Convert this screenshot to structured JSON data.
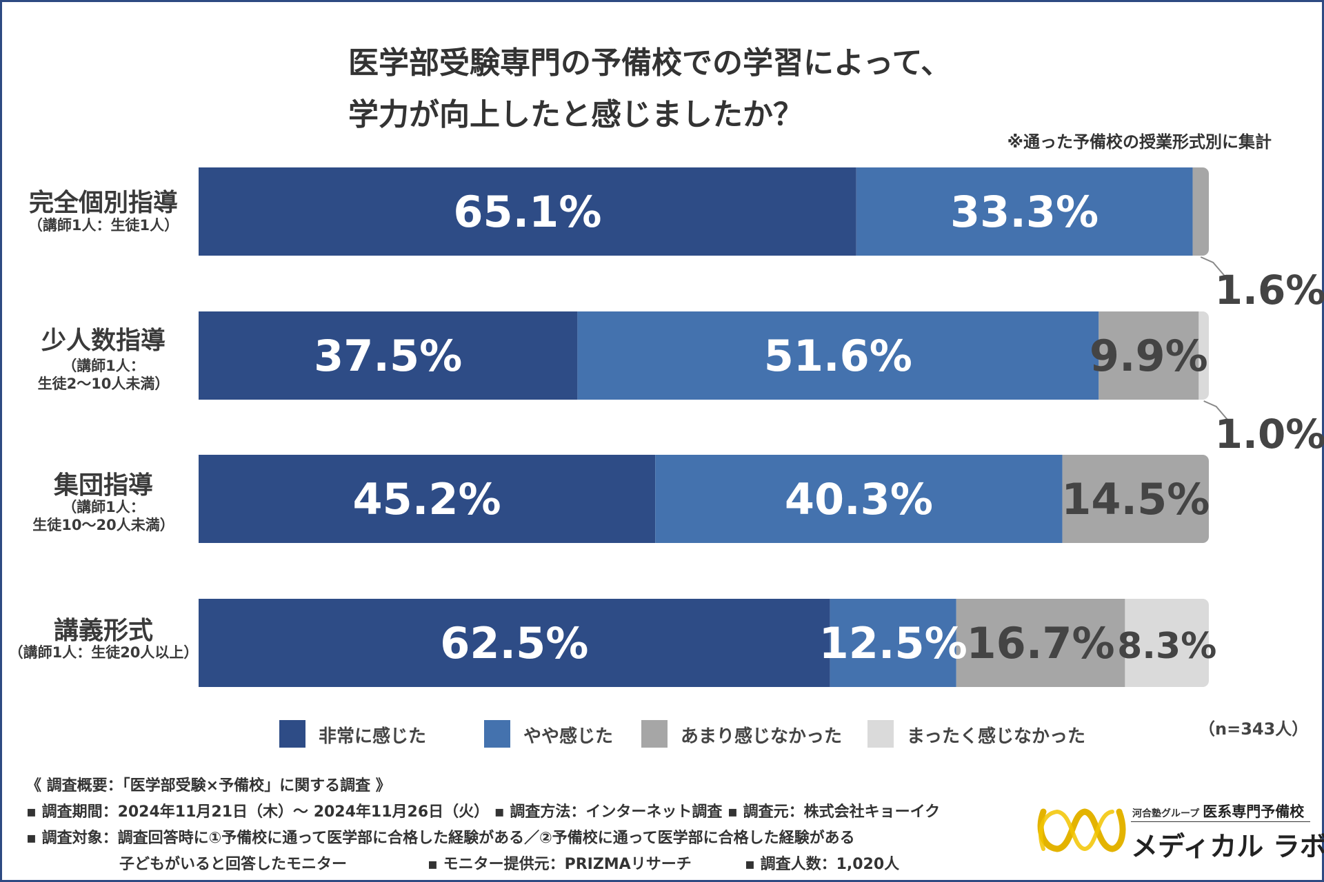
{
  "title_lines": [
    "医学部受験専門の予備校での学習によって、",
    "学力が向上したと感じましたか？"
  ],
  "note": "※通った予備校の授業形式別に集計",
  "n_label": "（n=343人）",
  "colors": {
    "series": [
      "#2e4c86",
      "#4472ae",
      "#a6a6a6",
      "#dadada"
    ],
    "value_text": [
      "#ffffff",
      "#ffffff",
      "#444444",
      "#444444"
    ],
    "frame": "#2e4a82"
  },
  "chart_data": {
    "type": "bar",
    "orientation": "horizontal",
    "stacked": true,
    "title": "医学部受験専門の予備校での学習によって、学力が向上したと感じましたか？",
    "categories": [
      {
        "name": "完全個別指導",
        "sub": [
          "（講師1人：生徒1人）"
        ]
      },
      {
        "name": "少人数指導",
        "sub": [
          "（講師1人：",
          "生徒2〜10人未満）"
        ]
      },
      {
        "name": "集団指導",
        "sub": [
          "（講師1人：",
          "生徒10〜20人未満）"
        ]
      },
      {
        "name": "講義形式",
        "sub": [
          "（講師1人：生徒20人以上）"
        ]
      }
    ],
    "series": [
      {
        "name": "非常に感じた",
        "values": [
          65.1,
          37.5,
          45.2,
          62.5
        ],
        "labels": [
          "65.1%",
          "37.5%",
          "45.2%",
          "62.5%"
        ]
      },
      {
        "name": "やや感じた",
        "values": [
          33.3,
          51.6,
          40.3,
          12.5
        ],
        "labels": [
          "33.3%",
          "51.6%",
          "40.3%",
          "12.5%"
        ]
      },
      {
        "name": "あまり感じなかった",
        "values": [
          1.6,
          9.9,
          14.5,
          16.7
        ],
        "labels": [
          "1.6%",
          "9.9%",
          "14.5%",
          "16.7%"
        ]
      },
      {
        "name": "まったく感じなかった",
        "values": [
          0,
          1.0,
          0,
          8.3
        ],
        "labels": [
          "",
          "1.0%",
          "",
          "8.3%"
        ]
      }
    ],
    "xlim": [
      0,
      100
    ],
    "grid": false,
    "legend_position": "bottom"
  },
  "footer": {
    "heading": "《 調査概要：「医学部受験×予備校」に関する調査 》",
    "line1": "▪ 調査期間：2024年11月21日（木）〜 2024年11月26日（火）  ▪ 調査方法：インターネット調査    ▪ 調査元：株式会社キョーイク",
    "line2": "▪ 調査対象：調査回答時に①予備校に通って医学部に合格した経験がある／②予備校に通って医学部に合格した経験がある",
    "line3a": "子どもがいると回答したモニター",
    "line3b": "▪ モニター提供元：PRIZMAリサーチ",
    "line3c": "▪ 調査人数：1,020人"
  },
  "logo": {
    "group": "河合塾グループ",
    "school": "医系専門予備校",
    "brand": "メディカル ラボ"
  }
}
